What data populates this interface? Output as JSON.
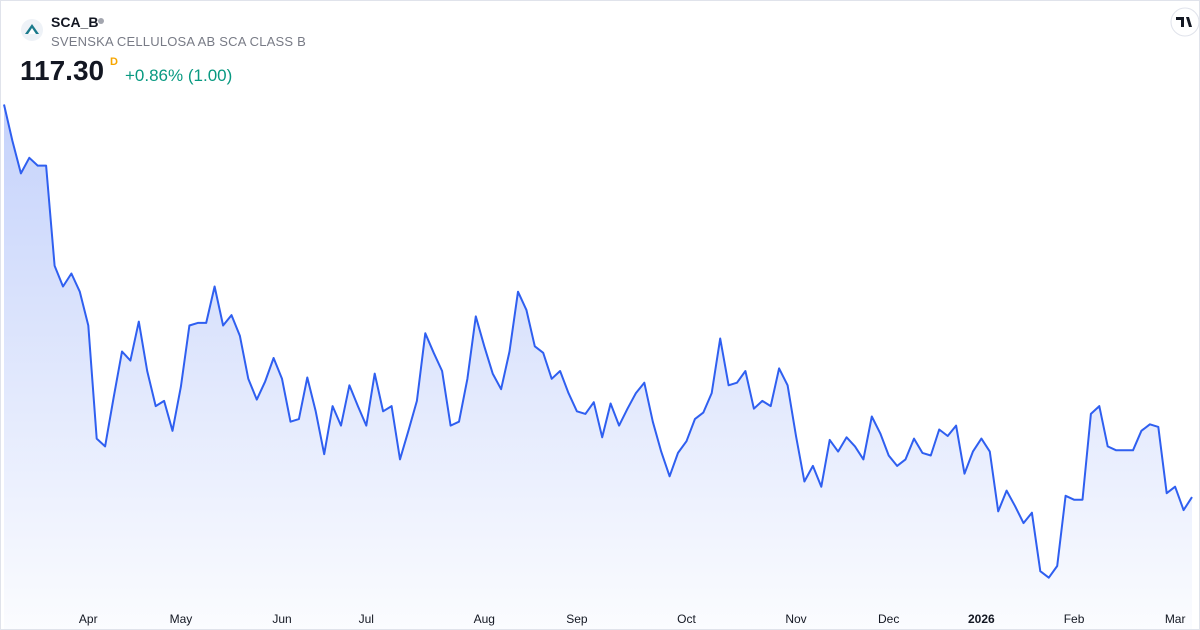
{
  "header": {
    "symbol": "SCA_B",
    "name": "SVENSKA CELLULOSA AB SCA CLASS B",
    "price": "117.30",
    "price_flag": "D",
    "change": "+0.86% (1.00)"
  },
  "chart_data": {
    "type": "area",
    "color": "#2f5ff0",
    "ylim": [
      110,
      148
    ],
    "categories": [
      null,
      null,
      null,
      null,
      null,
      null,
      null,
      null,
      null,
      null,
      "Apr",
      null,
      null,
      null,
      null,
      null,
      null,
      null,
      null,
      null,
      null,
      "May",
      null,
      null,
      null,
      null,
      null,
      null,
      null,
      null,
      null,
      null,
      null,
      "Jun",
      null,
      null,
      null,
      null,
      null,
      null,
      null,
      null,
      null,
      "Jul",
      null,
      null,
      null,
      null,
      null,
      null,
      null,
      null,
      null,
      null,
      null,
      null,
      null,
      "Aug",
      null,
      null,
      null,
      null,
      null,
      null,
      null,
      null,
      null,
      null,
      "Sep",
      null,
      null,
      null,
      null,
      null,
      null,
      null,
      null,
      null,
      null,
      null,
      null,
      "Oct",
      null,
      null,
      null,
      null,
      null,
      null,
      null,
      null,
      null,
      null,
      null,
      null,
      "Nov",
      null,
      null,
      null,
      null,
      null,
      null,
      null,
      null,
      null,
      null,
      "Dec",
      null,
      null,
      null,
      null,
      null,
      null,
      null,
      null,
      null,
      null,
      "2026",
      null,
      null,
      null,
      null,
      null,
      null,
      null,
      null,
      null,
      null,
      "Feb",
      null,
      null,
      null,
      null,
      null,
      null,
      null,
      null,
      null,
      null,
      null,
      "Mar",
      null,
      null
    ],
    "values": [
      147.5,
      144.7,
      142.2,
      143.4,
      142.8,
      142.8,
      135.1,
      133.5,
      134.5,
      133.1,
      130.5,
      121.8,
      121.2,
      124.9,
      128.5,
      127.8,
      130.8,
      127.0,
      124.3,
      124.7,
      122.4,
      125.8,
      130.5,
      130.7,
      130.7,
      133.5,
      130.5,
      131.3,
      129.7,
      126.4,
      124.8,
      126.2,
      128.0,
      126.4,
      123.1,
      123.3,
      126.5,
      123.9,
      120.6,
      124.3,
      122.8,
      125.9,
      124.3,
      122.8,
      126.8,
      123.9,
      124.3,
      120.2,
      122.4,
      124.7,
      129.9,
      128.4,
      127.0,
      122.8,
      123.1,
      126.4,
      131.2,
      128.9,
      126.8,
      125.6,
      128.5,
      133.1,
      131.7,
      128.9,
      128.4,
      126.4,
      127.0,
      125.3,
      123.9,
      123.7,
      124.6,
      121.9,
      124.5,
      122.8,
      124.1,
      125.3,
      126.1,
      123.1,
      120.8,
      118.9,
      120.7,
      121.6,
      123.3,
      123.8,
      125.3,
      129.5,
      125.9,
      126.1,
      127.0,
      124.1,
      124.7,
      124.3,
      127.2,
      125.9,
      122.0,
      118.5,
      119.7,
      118.1,
      121.7,
      120.8,
      121.9,
      121.2,
      120.2,
      123.5,
      122.2,
      120.5,
      119.7,
      120.2,
      121.8,
      120.7,
      120.5,
      122.5,
      122.0,
      122.8,
      119.1,
      120.8,
      121.8,
      120.8,
      116.2,
      117.8,
      116.6,
      115.3,
      116.1,
      111.6,
      111.1,
      112.0,
      117.4,
      117.1,
      117.1,
      123.7,
      124.3,
      121.2,
      120.9,
      120.9,
      120.9,
      122.4,
      122.9,
      122.7,
      117.6,
      118.1,
      116.3,
      117.3
    ]
  }
}
